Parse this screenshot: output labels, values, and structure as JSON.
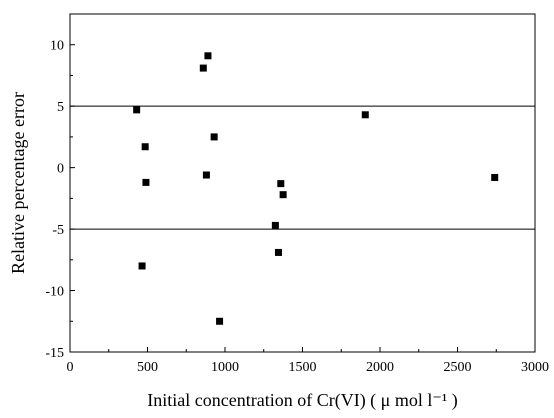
{
  "chart_data": {
    "type": "scatter",
    "title": "",
    "xlabel": "Initial concentration of Cr(VI) ( μ mol  l⁻¹ )",
    "ylabel": "Relative percentage error",
    "xlim": [
      0,
      3000
    ],
    "ylim": [
      -15,
      12.5
    ],
    "x_ticks": [
      0,
      500,
      1000,
      1500,
      2000,
      2500,
      3000
    ],
    "y_ticks": [
      -15,
      -10,
      -5,
      0,
      5,
      10
    ],
    "grid": false,
    "legend": "none",
    "reference_lines": [
      5,
      -5
    ],
    "marker_color": "#000000",
    "series": [
      {
        "points": [
          {
            "x": 430,
            "y": 4.7
          },
          {
            "x": 465,
            "y": -8.0
          },
          {
            "x": 485,
            "y": 1.7
          },
          {
            "x": 490,
            "y": -1.2
          },
          {
            "x": 860,
            "y": 8.1
          },
          {
            "x": 880,
            "y": -0.6
          },
          {
            "x": 890,
            "y": 9.1
          },
          {
            "x": 930,
            "y": 2.5
          },
          {
            "x": 965,
            "y": -12.5
          },
          {
            "x": 1325,
            "y": -4.7
          },
          {
            "x": 1345,
            "y": -6.9
          },
          {
            "x": 1360,
            "y": -1.3
          },
          {
            "x": 1375,
            "y": -2.2
          },
          {
            "x": 1905,
            "y": 4.3
          },
          {
            "x": 2740,
            "y": -0.8
          }
        ]
      }
    ]
  }
}
